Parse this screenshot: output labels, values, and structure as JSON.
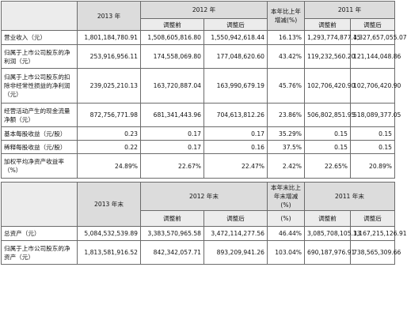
{
  "top_table": {
    "headers": {
      "year_2013": "2013 年",
      "year_2012": "2012 年",
      "change": "本年比上年增减(%)",
      "year_2011": "2011 年",
      "before_adjust": "调整前",
      "after_adjust": "调整后",
      "after_adjust_2012": "调整后",
      "after_adjust_2011": "调整后"
    },
    "rows": [
      {
        "label": "营业收入（元）",
        "v2013": "1,801,184,780.91",
        "v2012_before": "1,508,605,816.80",
        "v2012_after": "1,550,942,618.44",
        "change": "16.13%",
        "v2011_before": "1,293,774,877.45",
        "v2011_after": "1,327,657,055.07"
      },
      {
        "label": "归属于上市公司股东的净利润（元）",
        "v2013": "253,916,956.11",
        "v2012_before": "174,558,069.80",
        "v2012_after": "177,048,620.60",
        "change": "43.42%",
        "v2011_before": "119,232,560.20",
        "v2011_after": "121,144,048.86"
      },
      {
        "label": "归属于上市公司股东的扣除非经常性损益的净利润（元）",
        "v2013": "239,025,210.13",
        "v2012_before": "163,720,887.04",
        "v2012_after": "163,990,679.19",
        "change": "45.76%",
        "v2011_before": "102,706,420.90",
        "v2011_after": "102,706,420.90"
      },
      {
        "label": "经营活动产生的现金流量净额（元）",
        "v2013": "872,756,771.98",
        "v2012_before": "681,341,443.96",
        "v2012_after": "704,613,812.26",
        "change": "23.86%",
        "v2011_before": "506,802,851.95",
        "v2011_after": "518,089,377.05"
      },
      {
        "label": "基本每股收益（元/股）",
        "v2013": "0.23",
        "v2012_before": "0.17",
        "v2012_after": "0.17",
        "change": "35.29%",
        "v2011_before": "0.15",
        "v2011_after": "0.15"
      },
      {
        "label": "稀释每股收益（元/股）",
        "v2013": "0.22",
        "v2012_before": "0.17",
        "v2012_after": "0.16",
        "change": "37.5%",
        "v2011_before": "0.15",
        "v2011_after": "0.15"
      },
      {
        "label": "加权平均净资产收益率（%）",
        "v2013": "24.89%",
        "v2012_before": "22.67%",
        "v2012_after": "22.47%",
        "change": "2.42%",
        "v2011_before": "22.65%",
        "v2011_after": "20.89%"
      }
    ]
  },
  "bottom_table": {
    "headers": {
      "year_2013": "2013 年末",
      "year_2012": "2012 年末",
      "change": "本年末比上年末增减(%)",
      "year_2011": "2011 年末",
      "before_adjust": "调整前",
      "after_adjust": "调整后",
      "change_unit": "(%)",
      "after_adjust_2011": "调整后"
    },
    "rows": [
      {
        "label": "总资产（元）",
        "v2013": "5,084,532,539.89",
        "v2012_before": "3,383,570,965.58",
        "v2012_after": "3,472,114,277.56",
        "change": "46.44%",
        "v2011_before": "3,085,708,105.13",
        "v2011_after": "3,167,215,126.91"
      },
      {
        "label": "归属于上市公司股东的净资产（元）",
        "v2013": "1,813,581,916.52",
        "v2012_before": "842,342,057.71",
        "v2012_after": "893,209,941.26",
        "change": "103.04%",
        "v2011_before": "690,187,976.91",
        "v2011_after": "738,565,309.66"
      }
    ]
  }
}
